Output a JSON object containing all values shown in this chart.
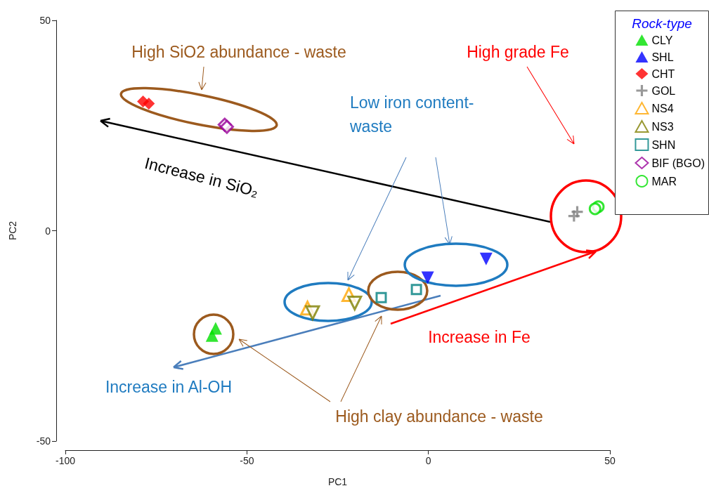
{
  "chart_data": {
    "type": "scatter",
    "xlabel": "PC1",
    "ylabel": "PC2",
    "legend_title": "Rock-type",
    "xlim": [
      -100,
      50
    ],
    "xticks": [
      -100,
      -50,
      0,
      50
    ],
    "ylim": [
      -50,
      50
    ],
    "yticks": [
      -50,
      0,
      50
    ],
    "grid": false,
    "legend": "top right",
    "series": [
      {
        "name": "CLY",
        "color": "#00e000",
        "marker": "triangle",
        "x": [
          -58.6,
          -59.6
        ],
        "values": [
          -23.2,
          -24.9
        ]
      },
      {
        "name": "SHL",
        "color": "#0000ff",
        "marker": "triangle-down",
        "x": [
          -0.2,
          15.9
        ],
        "values": [
          -11.2,
          -6.7
        ]
      },
      {
        "name": "CHT",
        "color": "#ff0000",
        "marker": "diamond",
        "x": [
          -78.6,
          -77.0
        ],
        "values": [
          30.7,
          30.2
        ]
      },
      {
        "name": "GOL",
        "color": "#808080",
        "marker": "cross",
        "x": [
          41.0,
          40.1
        ],
        "values": [
          4.5,
          3.5
        ]
      },
      {
        "name": "NS4",
        "color": "#ffa500",
        "marker": "triangle-open",
        "x": [
          -21.9,
          -33.3
        ],
        "values": [
          -15.2,
          -18.4
        ]
      },
      {
        "name": "NS3",
        "color": "#808000",
        "marker": "triangle-down-open",
        "x": [
          -20.3,
          -31.9
        ],
        "values": [
          -17.2,
          -19.5
        ]
      },
      {
        "name": "SHN",
        "color": "#008080",
        "marker": "square-open",
        "x": [
          -13.0,
          -3.3
        ],
        "values": [
          -15.9,
          -14.0
        ]
      },
      {
        "name": "BIF (BGO)",
        "color": "#990099",
        "marker": "diamond-open",
        "x": [
          -56.1,
          -55.5
        ],
        "values": [
          25.2,
          24.7
        ]
      },
      {
        "name": "MAR",
        "color": "#00e000",
        "marker": "circle-open",
        "x": [
          46.8,
          45.9
        ],
        "values": [
          5.7,
          5.2
        ]
      }
    ],
    "annotations": [
      "High SiO2 abundance - waste",
      "High grade Fe",
      "Low iron content-\nwaste",
      "Increase in SiO₂",
      "Increase in Fe",
      "Increase in Al-OH",
      "High clay abundance - waste"
    ]
  }
}
